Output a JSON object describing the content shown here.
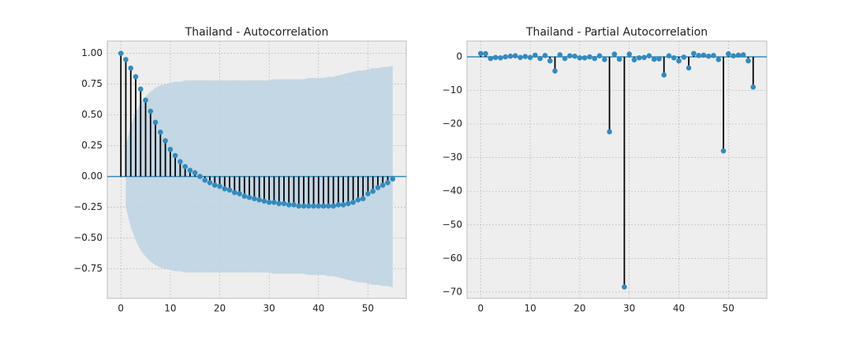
{
  "chart_data": [
    {
      "type": "stem",
      "title": "Thailand - Autocorrelation",
      "x": [
        0,
        1,
        2,
        3,
        4,
        5,
        6,
        7,
        8,
        9,
        10,
        11,
        12,
        13,
        14,
        15,
        16,
        17,
        18,
        19,
        20,
        21,
        22,
        23,
        24,
        25,
        26,
        27,
        28,
        29,
        30,
        31,
        32,
        33,
        34,
        35,
        36,
        37,
        38,
        39,
        40,
        41,
        42,
        43,
        44,
        45,
        46,
        47,
        48,
        49,
        50,
        51,
        52,
        53,
        54,
        55
      ],
      "values": [
        1.0,
        0.95,
        0.88,
        0.81,
        0.71,
        0.62,
        0.53,
        0.44,
        0.36,
        0.29,
        0.22,
        0.17,
        0.12,
        0.08,
        0.05,
        0.03,
        0.0,
        -0.03,
        -0.05,
        -0.07,
        -0.08,
        -0.1,
        -0.11,
        -0.13,
        -0.14,
        -0.16,
        -0.17,
        -0.18,
        -0.19,
        -0.2,
        -0.21,
        -0.21,
        -0.22,
        -0.22,
        -0.23,
        -0.23,
        -0.24,
        -0.24,
        -0.24,
        -0.24,
        -0.24,
        -0.24,
        -0.24,
        -0.24,
        -0.23,
        -0.23,
        -0.22,
        -0.21,
        -0.19,
        -0.18,
        -0.14,
        -0.12,
        -0.09,
        -0.07,
        -0.05,
        -0.02
      ],
      "confidence_band": [
        null,
        0.25,
        0.41,
        0.52,
        0.6,
        0.65,
        0.69,
        0.72,
        0.74,
        0.75,
        0.76,
        0.77,
        0.77,
        0.78,
        0.78,
        0.78,
        0.78,
        0.78,
        0.78,
        0.78,
        0.78,
        0.78,
        0.78,
        0.78,
        0.78,
        0.78,
        0.78,
        0.78,
        0.78,
        0.78,
        0.78,
        0.79,
        0.79,
        0.79,
        0.79,
        0.79,
        0.79,
        0.79,
        0.8,
        0.8,
        0.8,
        0.8,
        0.81,
        0.81,
        0.82,
        0.83,
        0.84,
        0.85,
        0.86,
        0.86,
        0.87,
        0.88,
        0.88,
        0.89,
        0.89,
        0.9
      ],
      "color": "#348abd",
      "stem_color": "#000000",
      "band_color": "#bfd4e2",
      "xlim": [
        -2.75,
        57.75
      ],
      "xticks": [
        0,
        10,
        20,
        30,
        40,
        50
      ],
      "ylim": [
        -0.99,
        1.1
      ],
      "yticks": [
        {
          "value": 1,
          "label": "1.00"
        },
        {
          "value": 0.75,
          "label": "0.75"
        },
        {
          "value": 0.5,
          "label": "0.50"
        },
        {
          "value": 0.25,
          "label": "0.25"
        },
        {
          "value": 0,
          "label": "0.00"
        },
        {
          "value": -0.25,
          "label": "−0.25"
        },
        {
          "value": -0.5,
          "label": "−0.50"
        },
        {
          "value": -0.75,
          "label": "−0.75"
        }
      ],
      "grid": true
    },
    {
      "type": "stem",
      "title": "Thailand - Partial Autocorrelation",
      "x": [
        0,
        1,
        2,
        3,
        4,
        5,
        6,
        7,
        8,
        9,
        10,
        11,
        12,
        13,
        14,
        15,
        16,
        17,
        18,
        19,
        20,
        21,
        22,
        23,
        24,
        25,
        26,
        27,
        28,
        29,
        30,
        31,
        32,
        33,
        34,
        35,
        36,
        37,
        38,
        39,
        40,
        41,
        42,
        43,
        44,
        45,
        46,
        47,
        48,
        49,
        50,
        51,
        52,
        53,
        54,
        55
      ],
      "values": [
        1.0,
        0.95,
        -0.5,
        -0.2,
        -0.3,
        0.0,
        0.2,
        0.3,
        -0.2,
        0.1,
        -0.2,
        0.5,
        -0.5,
        0.4,
        -1.2,
        -4.2,
        0.6,
        -0.5,
        0.3,
        0.2,
        -0.3,
        -0.3,
        0.0,
        -0.5,
        0.3,
        -0.8,
        -22.3,
        0.8,
        -0.7,
        -68.5,
        0.8,
        -0.9,
        -0.3,
        -0.2,
        0.3,
        -0.7,
        -0.6,
        -5.4,
        0.3,
        -0.3,
        -1.2,
        -0.1,
        -3.3,
        1.0,
        0.4,
        0.5,
        0.2,
        0.4,
        -0.8,
        -28.0,
        0.9,
        0.3,
        0.5,
        0.6,
        -1.2,
        -9.0
      ],
      "color": "#348abd",
      "stem_color": "#000000",
      "xlim": [
        -2.75,
        57.75
      ],
      "xticks": [
        0,
        10,
        20,
        30,
        40,
        50
      ],
      "ylim": [
        -71.9,
        4.7
      ],
      "yticks": [
        0,
        {
          "value": -10,
          "label": "−10"
        },
        {
          "value": -20,
          "label": "−20"
        },
        {
          "value": -30,
          "label": "−30"
        },
        {
          "value": -40,
          "label": "−40"
        },
        {
          "value": -50,
          "label": "−50"
        },
        {
          "value": -60,
          "label": "−60"
        },
        {
          "value": -70,
          "label": "−70"
        }
      ],
      "grid": true
    }
  ]
}
